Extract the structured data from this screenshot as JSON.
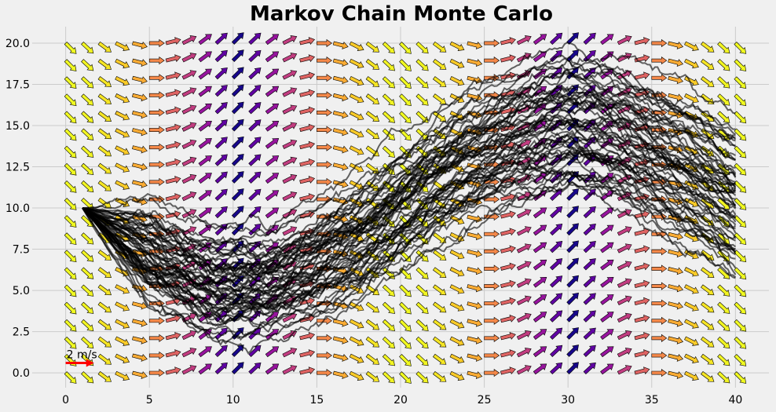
{
  "chart_data": {
    "type": "quiver",
    "title": "Markov Chain Monte Carlo",
    "xlabel": "",
    "ylabel": "",
    "xlim": [
      -2,
      42
    ],
    "ylim": [
      -0.9,
      21
    ],
    "xticks": [
      0,
      5,
      10,
      15,
      20,
      25,
      30,
      35,
      40
    ],
    "yticks": [
      0.0,
      2.5,
      5.0,
      7.5,
      10.0,
      12.5,
      15.0,
      17.5,
      20.0
    ],
    "xtick_labels": [
      "0",
      "5",
      "10",
      "15",
      "20",
      "25",
      "30",
      "35",
      "40"
    ],
    "ytick_labels": [
      "0.0",
      "2.5",
      "5.0",
      "7.5",
      "10.0",
      "12.5",
      "15.0",
      "17.5",
      "20.0"
    ],
    "grid": true,
    "background": "#f0f0f0",
    "grid_color": "#cbcbcb",
    "vector_field": {
      "x_start": 0,
      "x_end": 40,
      "x_count": 41,
      "y_start": 0,
      "y_end": 20,
      "y_count": 20,
      "function": "u = cos(angle), v = sin(angle), angle = -0.9*cos(2*pi*y/19)*cos(2*pi*x/40)... approximated",
      "colormap": "plasma",
      "edge_color": "#000000"
    },
    "trajectories": {
      "count": 60,
      "start": [
        1,
        10
      ],
      "x_end": 40,
      "color": "#000000",
      "opacity": 0.6,
      "mean_path_points": [
        [
          1,
          10
        ],
        [
          3,
          8.6
        ],
        [
          6,
          6.6
        ],
        [
          9,
          5.4
        ],
        [
          12,
          5.6
        ],
        [
          15,
          6.8
        ],
        [
          18,
          8.8
        ],
        [
          21,
          11.2
        ],
        [
          24,
          13.4
        ],
        [
          27,
          15.0
        ],
        [
          30,
          15.8
        ],
        [
          33,
          15.2
        ],
        [
          36,
          13.6
        ],
        [
          38,
          12.4
        ],
        [
          40,
          11.2
        ]
      ]
    },
    "quiver_key": {
      "label": "2 m/s",
      "x": 1.6,
      "y": 0.6,
      "color": "#ff0000"
    }
  }
}
